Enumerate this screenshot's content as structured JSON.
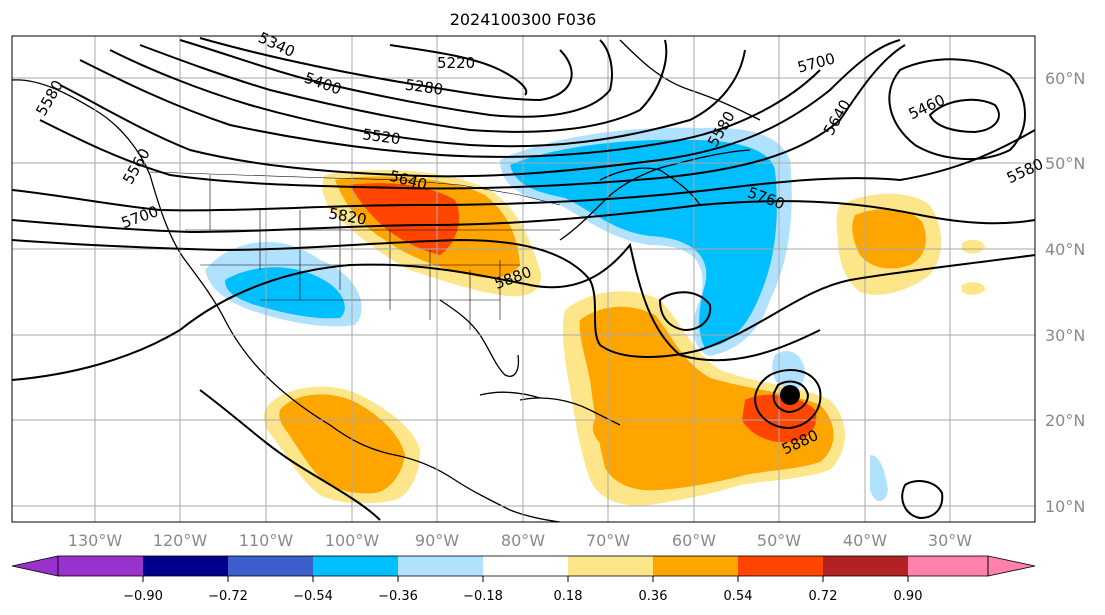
{
  "title": "2024100300 F036",
  "lat_labels": [
    "60°N",
    "50°N",
    "40°N",
    "30°N",
    "20°N",
    "10°N"
  ],
  "lon_labels": [
    "130°W",
    "120°W",
    "110°W",
    "100°W",
    "90°W",
    "80°W",
    "70°W",
    "60°W",
    "50°W",
    "40°W",
    "30°W"
  ],
  "colorbar": {
    "tick_labels": [
      "−0.90",
      "−0.72",
      "−0.54",
      "−0.36",
      "−0.18",
      "0.18",
      "0.36",
      "0.54",
      "0.72",
      "0.90"
    ],
    "colors": [
      "#9932cc",
      "#00008b",
      "#3a5fcd",
      "#00bfff",
      "#b0e2ff",
      "#ffffff",
      "#fde68a",
      "#ffa500",
      "#ff4500",
      "#b22222",
      "#ff82ab"
    ]
  },
  "contour_labels": [
    "5220",
    "5340",
    "5280",
    "5400",
    "5520",
    "5580",
    "5640",
    "5700",
    "5760",
    "5820",
    "5880",
    "5460",
    "5560"
  ],
  "anomaly_colors": {
    "light_blue": "#b0e2ff",
    "blue": "#00bfff",
    "yellow": "#fde68a",
    "orange": "#ffa500",
    "red_orange": "#ff4500"
  },
  "grid": true
}
